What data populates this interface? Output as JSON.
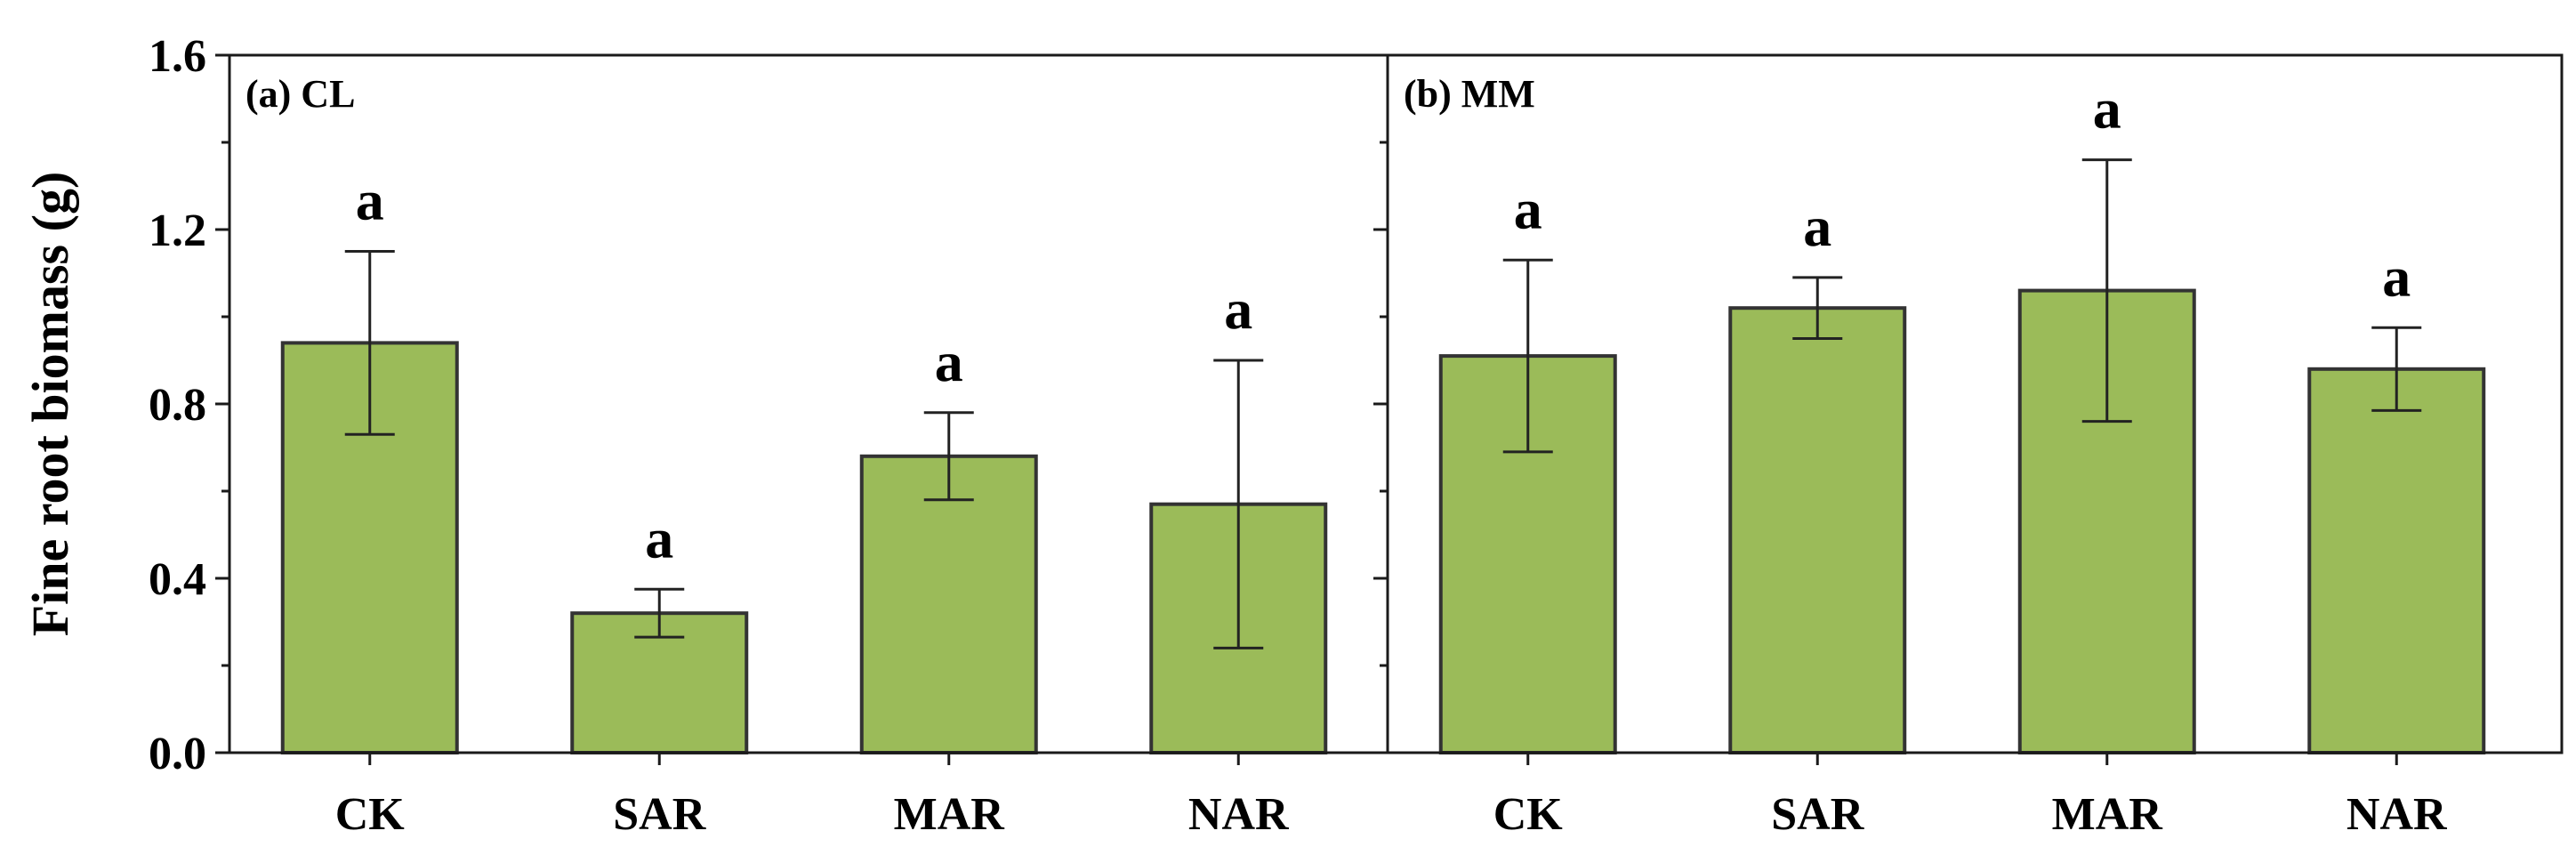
{
  "chart_data": {
    "type": "bar",
    "ylabel": "Fine root biomass (g)",
    "ylim": [
      0.0,
      1.6
    ],
    "yticks": [
      "0.0",
      "0.4",
      "0.8",
      "1.2",
      "1.6"
    ],
    "bar_color": "#9bbb59",
    "bar_edge_color": "#333333",
    "grid": false,
    "panels": [
      {
        "label": "(a) CL",
        "categories": [
          "CK",
          "SAR",
          "MAR",
          "NAR"
        ],
        "values": [
          0.94,
          0.32,
          0.68,
          0.57
        ],
        "errors": [
          0.21,
          0.055,
          0.1,
          0.33
        ],
        "significance": [
          "a",
          "a",
          "a",
          "a"
        ]
      },
      {
        "label": "(b) MM",
        "categories": [
          "CK",
          "SAR",
          "MAR",
          "NAR"
        ],
        "values": [
          0.91,
          1.02,
          1.06,
          0.88
        ],
        "errors": [
          0.22,
          0.07,
          0.3,
          0.095
        ],
        "significance": [
          "a",
          "a",
          "a",
          "a"
        ]
      }
    ]
  }
}
